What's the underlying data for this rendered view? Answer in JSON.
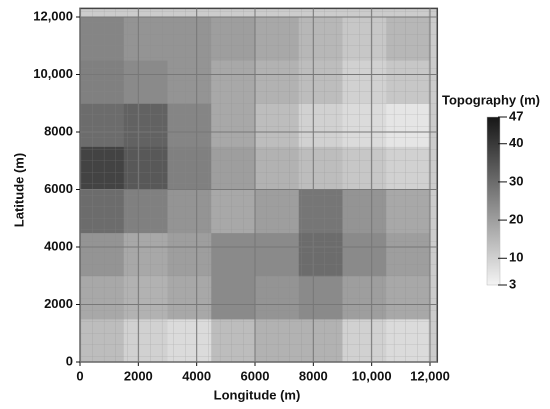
{
  "chart_data": {
    "type": "heatmap",
    "xlabel": "Longitude (m)",
    "ylabel": "Latitude (m)",
    "xlim": [
      0,
      12250
    ],
    "ylim": [
      0,
      12300
    ],
    "xticks": [
      0,
      2000,
      4000,
      6000,
      8000,
      {
        "value": 10000,
        "label": "10,000"
      },
      {
        "value": 12000,
        "label": "12,000"
      }
    ],
    "yticks": [
      0,
      2000,
      4000,
      6000,
      8000,
      {
        "value": 10000,
        "label": "10,000"
      },
      {
        "value": 12000,
        "label": "12,000"
      }
    ],
    "grid": true,
    "x_edges": [
      0,
      1500,
      3000,
      4500,
      6000,
      7500,
      9000,
      10500,
      12000
    ],
    "y_edges": [
      0,
      1500,
      3000,
      4500,
      6000,
      7500,
      9000,
      10500,
      12000
    ],
    "z": [
      [
        14,
        10,
        8,
        14,
        16,
        16,
        10,
        8
      ],
      [
        18,
        16,
        18,
        24,
        22,
        24,
        20,
        18
      ],
      [
        22,
        18,
        20,
        24,
        24,
        30,
        24,
        20
      ],
      [
        30,
        26,
        22,
        18,
        20,
        28,
        22,
        18
      ],
      [
        38,
        34,
        26,
        20,
        16,
        14,
        12,
        10
      ],
      [
        30,
        32,
        25,
        18,
        14,
        10,
        8,
        6
      ],
      [
        26,
        24,
        22,
        18,
        16,
        14,
        10,
        12
      ],
      [
        25,
        22,
        22,
        20,
        18,
        15,
        12,
        15
      ]
    ],
    "colorbar": {
      "title": "Topography (m)",
      "lim": [
        3,
        47
      ],
      "ticks": [
        3,
        10,
        20,
        30,
        40,
        47
      ],
      "colors": [
        "#f4f4f4",
        "#161616"
      ]
    }
  }
}
